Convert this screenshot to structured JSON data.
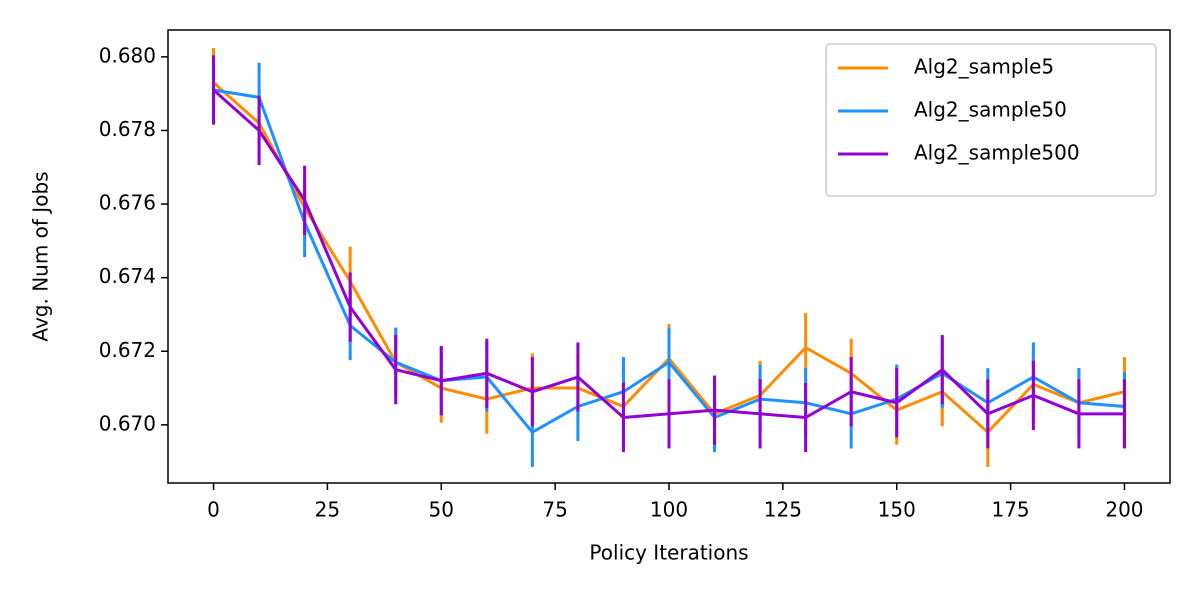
{
  "chart_data": {
    "type": "line",
    "xlabel": "Policy Iterations",
    "ylabel": "Avg. Num of Jobs",
    "x": [
      0,
      10,
      20,
      30,
      40,
      50,
      60,
      70,
      80,
      90,
      100,
      110,
      120,
      130,
      140,
      150,
      160,
      170,
      180,
      190,
      200
    ],
    "series": [
      {
        "name": "Alg2_sample5",
        "color": "#ff8c00",
        "values": [
          0.6793,
          0.6782,
          0.6759,
          0.6739,
          0.6717,
          0.671,
          0.6707,
          0.671,
          0.671,
          0.6705,
          0.6718,
          0.6703,
          0.6708,
          0.6721,
          0.6714,
          0.6704,
          0.6709,
          0.6698,
          0.6711,
          0.6706,
          0.6709
        ],
        "errors": [
          0.0009,
          0.0009,
          0.0009,
          0.0009,
          0.0009,
          0.0009,
          0.0009,
          0.0009,
          0.0009,
          0.0009,
          0.0009,
          0.0009,
          0.0009,
          0.0009,
          0.0009,
          0.0009,
          0.0009,
          0.0009,
          0.0009,
          0.0009,
          0.0009
        ]
      },
      {
        "name": "Alg2_sample50",
        "color": "#1e90ff",
        "values": [
          0.6791,
          0.6789,
          0.6755,
          0.6727,
          0.6717,
          0.6712,
          0.6713,
          0.6698,
          0.6705,
          0.6709,
          0.6717,
          0.6702,
          0.6707,
          0.6706,
          0.6703,
          0.6707,
          0.6714,
          0.6706,
          0.6713,
          0.6706,
          0.6705
        ],
        "errors": [
          0.0009,
          0.0009,
          0.0009,
          0.0009,
          0.0009,
          0.0009,
          0.0009,
          0.0009,
          0.0009,
          0.0009,
          0.0009,
          0.0009,
          0.0009,
          0.0009,
          0.0009,
          0.0009,
          0.0009,
          0.0009,
          0.0009,
          0.0009,
          0.0009
        ]
      },
      {
        "name": "Alg2_sample500",
        "color": "#9400d3",
        "values": [
          0.6791,
          0.678,
          0.6761,
          0.6732,
          0.6715,
          0.6712,
          0.6714,
          0.6709,
          0.6713,
          0.6702,
          0.6703,
          0.6704,
          0.6703,
          0.6702,
          0.6709,
          0.6706,
          0.6715,
          0.6703,
          0.6708,
          0.6703,
          0.6703
        ],
        "errors": [
          0.0009,
          0.0009,
          0.0009,
          0.0009,
          0.0009,
          0.0009,
          0.0009,
          0.0009,
          0.0009,
          0.0009,
          0.0009,
          0.0009,
          0.0009,
          0.0009,
          0.0009,
          0.0009,
          0.0009,
          0.0009,
          0.0009,
          0.0009,
          0.0009
        ]
      }
    ],
    "xlim": [
      -10,
      210
    ],
    "ylim": [
      0.66842,
      0.68073
    ],
    "xticks": [
      0,
      25,
      50,
      75,
      100,
      125,
      150,
      175,
      200
    ],
    "yticks": [
      {
        "value": 0.67,
        "label": "0.670"
      },
      0.672,
      0.674,
      0.676,
      0.678,
      {
        "value": 0.68,
        "label": "0.680"
      }
    ],
    "legend": "upper right"
  }
}
